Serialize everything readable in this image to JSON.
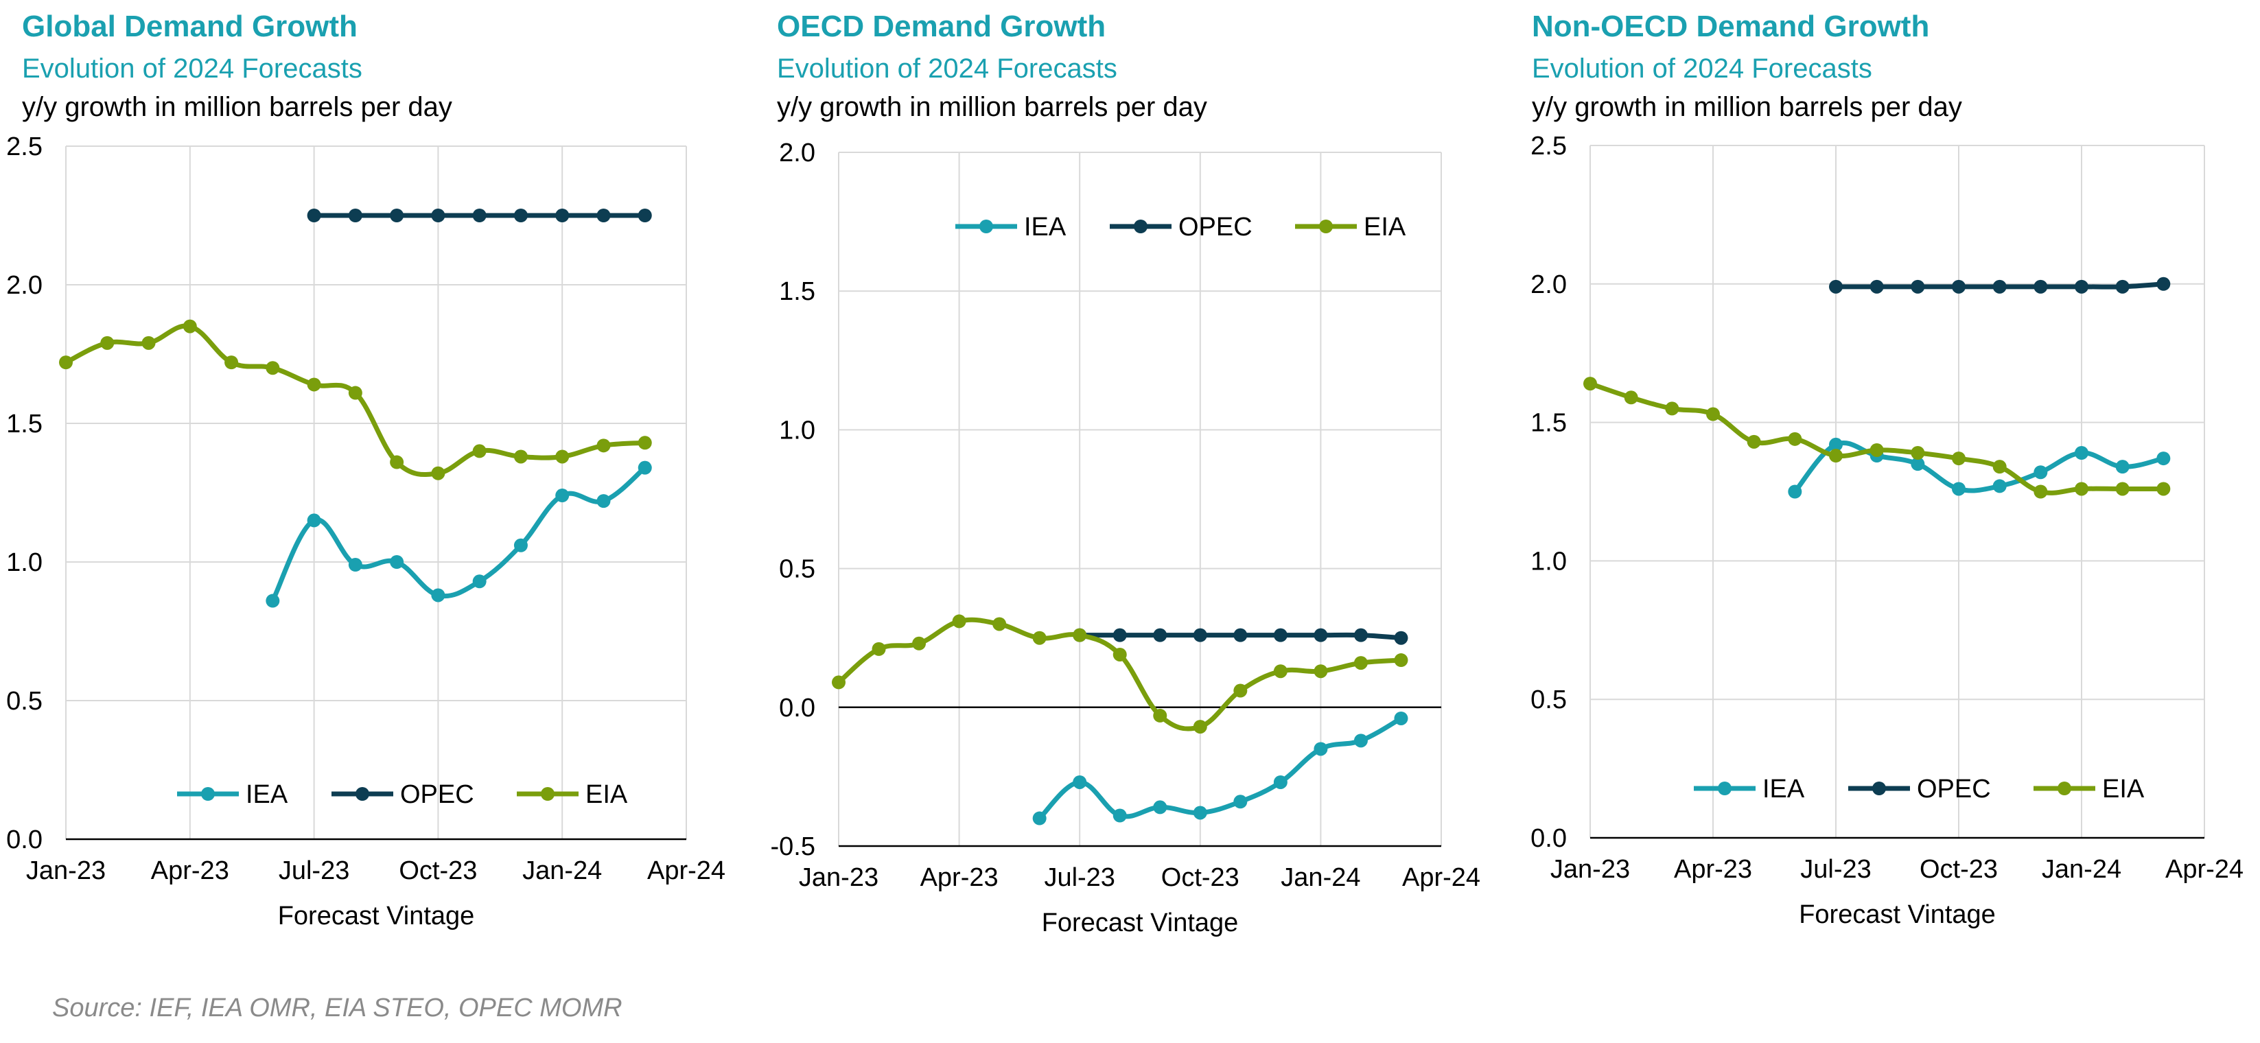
{
  "source": "Source: IEF, IEA OMR, EIA STEO, OPEC MOMR",
  "colors": {
    "IEA": "#1aa0b0",
    "OPEC": "#0d3d52",
    "EIA": "#7a9e0c",
    "grid": "#d9d9d9",
    "axis": "#000000"
  },
  "x_ticks": [
    "Jan-23",
    "Apr-23",
    "Jul-23",
    "Oct-23",
    "Jan-24",
    "Apr-24"
  ],
  "xlabel": "Forecast Vintage",
  "chart_data": [
    {
      "type": "line",
      "title": "Global Demand Growth",
      "subtitle": "Evolution of 2024 Forecasts",
      "ylabel": "y/y growth in million barrels per day",
      "xlabel": "Forecast Vintage",
      "x_ticks": [
        "Jan-23",
        "Apr-23",
        "Jul-23",
        "Oct-23",
        "Jan-24",
        "Apr-24"
      ],
      "y_ticks": [
        "0.0",
        "0.5",
        "1.0",
        "1.5",
        "2.0",
        "2.5"
      ],
      "ylim": [
        0,
        2.5
      ],
      "grid": true,
      "legend": "bottom",
      "series": [
        {
          "name": "IEA",
          "x": [
            5,
            6,
            7,
            8,
            9,
            10,
            11,
            12,
            13,
            14
          ],
          "values": [
            0.86,
            1.15,
            0.99,
            1.0,
            0.88,
            0.93,
            1.06,
            1.24,
            1.22,
            1.34
          ]
        },
        {
          "name": "OPEC",
          "x": [
            6,
            7,
            8,
            9,
            10,
            11,
            12,
            13,
            14
          ],
          "values": [
            2.25,
            2.25,
            2.25,
            2.25,
            2.25,
            2.25,
            2.25,
            2.25,
            2.25
          ]
        },
        {
          "name": "EIA",
          "x": [
            0,
            1,
            2,
            3,
            4,
            5,
            6,
            7,
            8,
            9,
            10,
            11,
            12,
            13,
            14
          ],
          "values": [
            1.72,
            1.79,
            1.79,
            1.85,
            1.72,
            1.7,
            1.64,
            1.61,
            1.36,
            1.32,
            1.4,
            1.38,
            1.38,
            1.42,
            1.43
          ]
        }
      ]
    },
    {
      "type": "line",
      "title": "OECD Demand Growth",
      "subtitle": "Evolution of 2024 Forecasts",
      "ylabel": "y/y growth in million barrels per day",
      "xlabel": "Forecast Vintage",
      "x_ticks": [
        "Jan-23",
        "Apr-23",
        "Jul-23",
        "Oct-23",
        "Jan-24",
        "Apr-24"
      ],
      "y_ticks": [
        "-0.5",
        "0.0",
        "0.5",
        "1.0",
        "1.5",
        "2.0"
      ],
      "ylim": [
        -0.5,
        2.0
      ],
      "grid": true,
      "legend": "top",
      "series": [
        {
          "name": "IEA",
          "x": [
            5,
            6,
            7,
            8,
            9,
            10,
            11,
            12,
            13,
            14
          ],
          "values": [
            -0.4,
            -0.27,
            -0.39,
            -0.36,
            -0.38,
            -0.34,
            -0.27,
            -0.15,
            -0.12,
            -0.04
          ]
        },
        {
          "name": "OPEC",
          "x": [
            6,
            7,
            8,
            9,
            10,
            11,
            12,
            13,
            14
          ],
          "values": [
            0.26,
            0.26,
            0.26,
            0.26,
            0.26,
            0.26,
            0.26,
            0.26,
            0.25
          ]
        },
        {
          "name": "EIA",
          "x": [
            0,
            1,
            2,
            3,
            4,
            5,
            6,
            7,
            8,
            9,
            10,
            11,
            12,
            13,
            14
          ],
          "values": [
            0.09,
            0.21,
            0.23,
            0.31,
            0.3,
            0.25,
            0.26,
            0.19,
            -0.03,
            -0.07,
            0.06,
            0.13,
            0.13,
            0.16,
            0.17
          ]
        }
      ]
    },
    {
      "type": "line",
      "title": "Non-OECD Demand Growth",
      "subtitle": "Evolution of 2024 Forecasts",
      "ylabel": "y/y growth in million barrels per day",
      "xlabel": "Forecast Vintage",
      "x_ticks": [
        "Jan-23",
        "Apr-23",
        "Jul-23",
        "Oct-23",
        "Jan-24",
        "Apr-24"
      ],
      "y_ticks": [
        "0.0",
        "0.5",
        "1.0",
        "1.5",
        "2.0",
        "2.5"
      ],
      "ylim": [
        0,
        2.5
      ],
      "grid": true,
      "legend": "bottom",
      "series": [
        {
          "name": "IEA",
          "x": [
            5,
            6,
            7,
            8,
            9,
            10,
            11,
            12,
            13,
            14
          ],
          "values": [
            1.25,
            1.42,
            1.38,
            1.35,
            1.26,
            1.27,
            1.32,
            1.39,
            1.34,
            1.37
          ]
        },
        {
          "name": "OPEC",
          "x": [
            6,
            7,
            8,
            9,
            10,
            11,
            12,
            13,
            14
          ],
          "values": [
            1.99,
            1.99,
            1.99,
            1.99,
            1.99,
            1.99,
            1.99,
            1.99,
            2.0
          ]
        },
        {
          "name": "EIA",
          "x": [
            0,
            1,
            2,
            3,
            4,
            5,
            6,
            7,
            8,
            9,
            10,
            11,
            12,
            13,
            14
          ],
          "values": [
            1.64,
            1.59,
            1.55,
            1.53,
            1.43,
            1.44,
            1.38,
            1.4,
            1.39,
            1.37,
            1.34,
            1.25,
            1.26,
            1.26,
            1.26
          ]
        }
      ]
    }
  ]
}
